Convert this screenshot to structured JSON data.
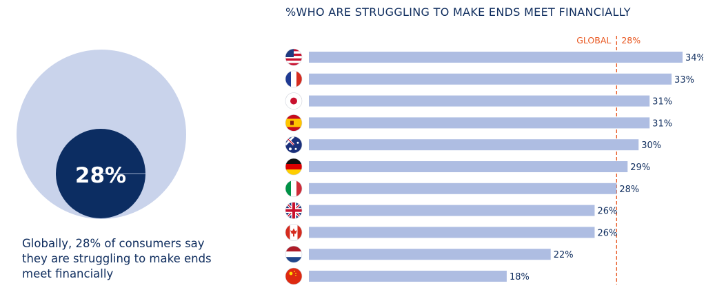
{
  "summary": {
    "big_value": "28%",
    "caption": "Globally, 28% of consumers say they are struggling to make ends meet financially",
    "share": 0.28
  },
  "chart_data": {
    "type": "bar",
    "orientation": "horizontal",
    "title": "%WHO ARE STRUGGLING TO MAKE ENDS MEET FINANCIALLY",
    "categories": [
      "USA",
      "France",
      "Japan",
      "Spain",
      "Australia",
      "Germany",
      "Italy",
      "UK",
      "Canada",
      "Netherlands",
      "China"
    ],
    "flag_icons": [
      "us-flag-icon",
      "france-flag-icon",
      "japan-flag-icon",
      "spain-flag-icon",
      "australia-flag-icon",
      "germany-flag-icon",
      "italy-flag-icon",
      "uk-flag-icon",
      "canada-flag-icon",
      "netherlands-flag-icon",
      "china-flag-icon"
    ],
    "values": [
      34,
      33,
      31,
      31,
      30,
      29,
      28,
      26,
      26,
      22,
      18
    ],
    "value_labels": [
      "34%",
      "33%",
      "31%",
      "31%",
      "30%",
      "29%",
      "28%",
      "26%",
      "26%",
      "22%",
      "18%"
    ],
    "reference": {
      "label": "GLOBAL",
      "value_label": "28%",
      "value": 28
    },
    "xlim": [
      0,
      34
    ],
    "grid": false
  },
  "colors": {
    "bar": "#aebde2",
    "circle_light": "#c9d3eb",
    "circle_dark": "#0c2d62",
    "text": "#0f2d5e",
    "reference": "#e8561f"
  }
}
